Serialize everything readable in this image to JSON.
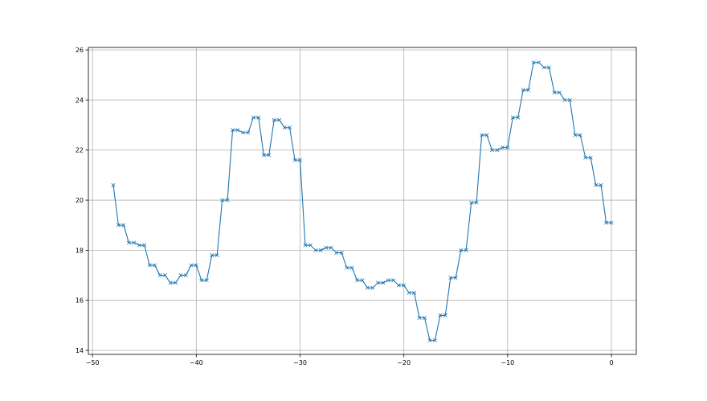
{
  "chart_data": {
    "type": "line",
    "title": "",
    "xlabel": "",
    "ylabel": "",
    "xlim": [
      -50.4,
      2.4
    ],
    "ylim": [
      13.84,
      26.1
    ],
    "xticks": [
      -50,
      -40,
      -30,
      -20,
      -10,
      0
    ],
    "yticks": [
      14,
      16,
      18,
      20,
      22,
      24,
      26
    ],
    "grid": true,
    "marker": "x",
    "line_color": "#1f77b4",
    "series": [
      {
        "x": [
          -48,
          -47.5,
          -47,
          -46.5,
          -46,
          -45.5,
          -45,
          -44.5,
          -44,
          -43.5,
          -43,
          -42.5,
          -42,
          -41.5,
          -41,
          -40.5,
          -40,
          -39.5,
          -39,
          -38.5,
          -38,
          -37.5,
          -37,
          -36.5,
          -36,
          -35.5,
          -35,
          -34.5,
          -34,
          -33.5,
          -33,
          -32.5,
          -32,
          -31.5,
          -31,
          -30.5,
          -30,
          -29.5,
          -29,
          -28.5,
          -28,
          -27.5,
          -27,
          -26.5,
          -26,
          -25.5,
          -25,
          -24.5,
          -24,
          -23.5,
          -23,
          -22.5,
          -22,
          -21.5,
          -21,
          -20.5,
          -20,
          -19.5,
          -19,
          -18.5,
          -18,
          -17.5,
          -17,
          -16.5,
          -16,
          -15.5,
          -15,
          -14.5,
          -14,
          -13.5,
          -13,
          -12.5,
          -12,
          -11.5,
          -11,
          -10.5,
          -10,
          -9.5,
          -9,
          -8.5,
          -8,
          -7.5,
          -7,
          -6.5,
          -6,
          -5.5,
          -5,
          -4.5,
          -4,
          -3.5,
          -3,
          -2.5,
          -2,
          -1.5,
          -1,
          -0.5,
          0
        ],
        "y": [
          20.6,
          19.0,
          19.0,
          18.3,
          18.3,
          18.2,
          18.2,
          17.4,
          17.4,
          17.0,
          17.0,
          16.7,
          16.7,
          17.0,
          17.0,
          17.4,
          17.4,
          16.8,
          16.8,
          17.8,
          17.8,
          20.0,
          20.0,
          22.8,
          22.8,
          22.7,
          22.7,
          23.3,
          23.3,
          21.8,
          21.8,
          23.2,
          23.2,
          22.9,
          22.9,
          21.6,
          21.6,
          18.2,
          18.2,
          18.0,
          18.0,
          18.1,
          18.1,
          17.9,
          17.9,
          17.3,
          17.3,
          16.8,
          16.8,
          16.5,
          16.5,
          16.7,
          16.7,
          16.8,
          16.8,
          16.6,
          16.6,
          16.3,
          16.3,
          15.3,
          15.3,
          14.4,
          14.4,
          15.4,
          15.4,
          16.9,
          16.9,
          18.0,
          18.0,
          19.9,
          19.9,
          22.6,
          22.6,
          22.0,
          22.0,
          22.1,
          22.1,
          23.3,
          23.3,
          24.4,
          24.4,
          25.5,
          25.5,
          25.3,
          25.3,
          24.3,
          24.3,
          24.0,
          24.0,
          22.6,
          22.6,
          21.7,
          21.7,
          20.6,
          20.6,
          19.1,
          19.1
        ]
      }
    ]
  }
}
